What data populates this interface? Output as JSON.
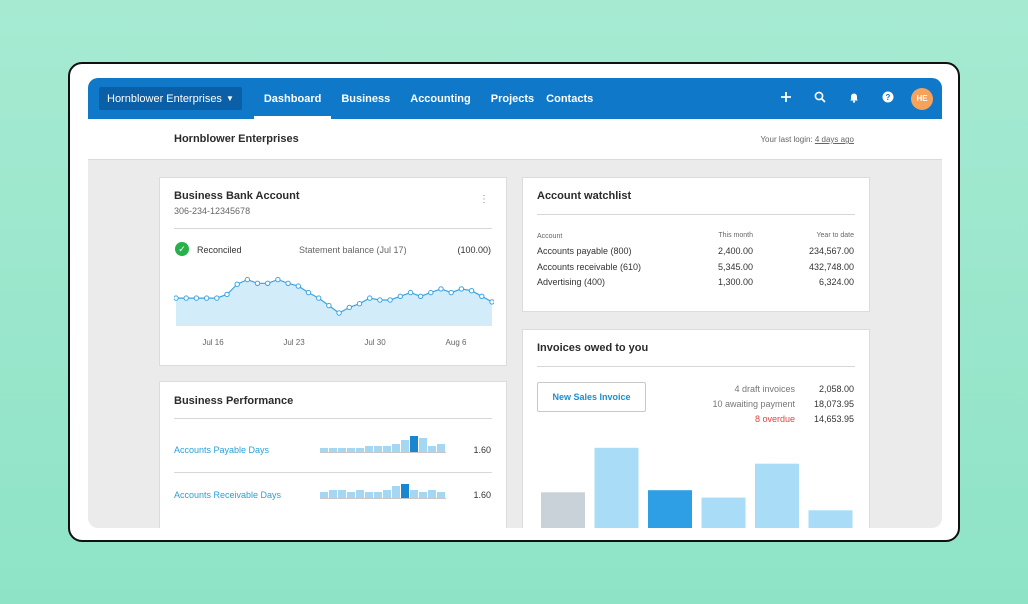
{
  "topbar": {
    "org_selector": "Hornblower Enterprises",
    "nav": [
      {
        "label": "Dashboard",
        "active": true
      },
      {
        "label": "Business",
        "active": false
      },
      {
        "label": "Accounting",
        "active": false
      },
      {
        "label": "Projects",
        "active": false
      },
      {
        "label": "Contacts",
        "active": false
      }
    ],
    "icons": [
      "plus-icon",
      "search-icon",
      "bell-icon",
      "help-icon"
    ],
    "avatar_initials": "HE",
    "color": "#0f78c8"
  },
  "subheader": {
    "org_title": "Hornblower Enterprises",
    "last_login_prefix": "Your last login: ",
    "last_login_value": "4 days ago"
  },
  "bank_account": {
    "title": "Business Bank Account",
    "account_number": "306-234-12345678",
    "status": "Reconciled",
    "statement_label": "Statement balance (Jul 17)",
    "statement_value": "(100.00)",
    "chart_data": {
      "type": "area",
      "x_ticks": [
        "Jul 16",
        "Jul 23",
        "Jul 30",
        "Aug 6"
      ],
      "values": [
        30,
        30,
        30,
        30,
        30,
        34,
        45,
        50,
        46,
        46,
        50,
        46,
        43,
        36,
        30,
        22,
        14,
        20,
        24,
        30,
        28,
        28,
        32,
        36,
        32,
        36,
        40,
        36,
        40,
        38,
        32,
        26
      ]
    }
  },
  "performance": {
    "title": "Business Performance",
    "rows": [
      {
        "label": "Accounts Payable Days",
        "value": "1.60",
        "bars": [
          2,
          2,
          2,
          2,
          2,
          3,
          3,
          3,
          4,
          6,
          8,
          7,
          3,
          4
        ],
        "highlight": 10
      },
      {
        "label": "Accounts Receivable Days",
        "value": "1.60",
        "bars": [
          3,
          4,
          4,
          3,
          4,
          3,
          3,
          4,
          6,
          7,
          4,
          3,
          4,
          3
        ],
        "highlight": 9
      }
    ]
  },
  "watchlist": {
    "title": "Account watchlist",
    "headers": [
      "Account",
      "This month",
      "Year to date"
    ],
    "rows": [
      [
        "Accounts payable (800)",
        "2,400.00",
        "234,567.00"
      ],
      [
        "Accounts receivable (610)",
        "5,345.00",
        "432,748.00"
      ],
      [
        "Advertising (400)",
        "1,300.00",
        "6,324.00"
      ]
    ]
  },
  "invoices": {
    "title": "Invoices owed to you",
    "button": "New Sales Invoice",
    "summary": [
      {
        "label": "4 draft invoices",
        "value": "2,058.00",
        "alert": false
      },
      {
        "label": "10 awaiting payment",
        "value": "18,073.95",
        "alert": false
      },
      {
        "label": "8 overdue",
        "value": "14,653.95",
        "alert": true
      }
    ],
    "chart_data": {
      "type": "bar",
      "values": [
        45,
        87,
        47,
        40,
        72,
        28
      ],
      "colors": [
        "#c9d2d9",
        "#a9ddf7",
        "#2e9ee5",
        "#a9ddf7",
        "#a9ddf7",
        "#a9ddf7"
      ]
    }
  }
}
